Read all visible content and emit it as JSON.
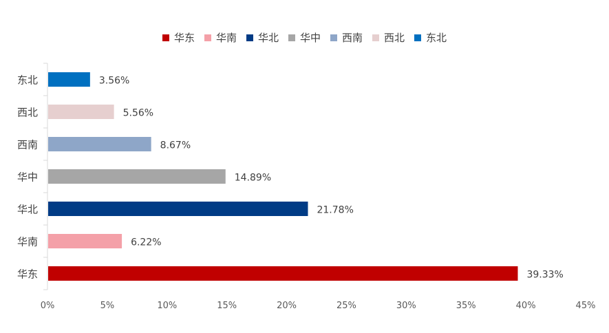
{
  "chart_data": {
    "type": "bar",
    "orientation": "horizontal",
    "title": "",
    "xlabel": "",
    "ylabel": "",
    "categories": [
      "东北",
      "西北",
      "西南",
      "华中",
      "华北",
      "华南",
      "华东"
    ],
    "values": [
      3.56,
      5.56,
      8.67,
      14.89,
      21.78,
      6.22,
      39.33
    ],
    "value_labels": [
      "3.56%",
      "5.56%",
      "8.67%",
      "14.89%",
      "21.78%",
      "6.22%",
      "39.33%"
    ],
    "colors": [
      "#0070C0",
      "#E6CFCF",
      "#8EA6C8",
      "#A6A6A6",
      "#003B85",
      "#F4A0A8",
      "#C00000"
    ],
    "xlim": [
      0,
      45
    ],
    "x_ticks": [
      "0%",
      "5%",
      "10%",
      "15%",
      "20%",
      "25%",
      "30%",
      "35%",
      "40%",
      "45%"
    ],
    "grid": false,
    "legend_position": "top",
    "legend": [
      {
        "name": "华东",
        "color": "#C00000"
      },
      {
        "name": "华南",
        "color": "#F4A0A8"
      },
      {
        "name": "华北",
        "color": "#003B85"
      },
      {
        "name": "华中",
        "color": "#A6A6A6"
      },
      {
        "name": "西南",
        "color": "#8EA6C8"
      },
      {
        "name": "西北",
        "color": "#E6CFCF"
      },
      {
        "name": "东北",
        "color": "#0070C0"
      }
    ]
  }
}
